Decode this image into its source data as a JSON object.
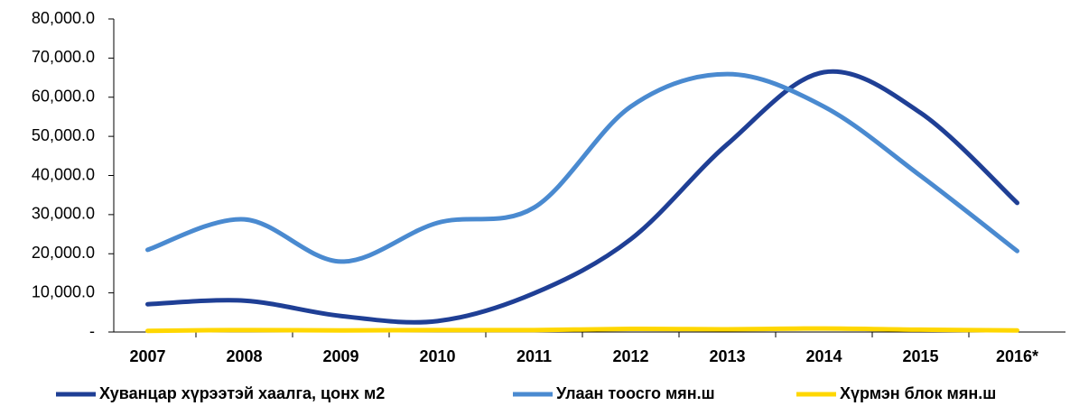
{
  "chart_data": {
    "type": "line",
    "categories": [
      "2007",
      "2008",
      "2009",
      "2010",
      "2011",
      "2012",
      "2013",
      "2014",
      "2015",
      "2016*"
    ],
    "series": [
      {
        "name": "Хуванцар хүрээтэй хаалга, цонх м2",
        "color": "#1f3f95",
        "values": [
          7100,
          8000,
          4100,
          2800,
          9900,
          23700,
          48000,
          66400,
          56000,
          33000
        ]
      },
      {
        "name": "Улаан тоосго мян.ш",
        "color": "#4a8ad0",
        "values": [
          21000,
          28800,
          18000,
          27900,
          31800,
          57600,
          65900,
          57600,
          39900,
          20700
        ]
      },
      {
        "name": "Хүрмэн блок мян.ш",
        "color": "#ffd700",
        "values": [
          300,
          500,
          400,
          500,
          500,
          800,
          700,
          900,
          600,
          400
        ]
      }
    ],
    "ylim": [
      0,
      80000
    ],
    "yticks": [
      {
        "value": 0,
        "label": "-"
      },
      {
        "value": 10000,
        "label": "10,000.0"
      },
      {
        "value": 20000,
        "label": "20,000.0"
      },
      {
        "value": 30000,
        "label": "30,000.0"
      },
      {
        "value": 40000,
        "label": "40,000.0"
      },
      {
        "value": 50000,
        "label": "50,000.0"
      },
      {
        "value": 60000,
        "label": "60,000.0"
      },
      {
        "value": 70000,
        "label": "70,000.0"
      },
      {
        "value": 80000,
        "label": "80,000.0"
      }
    ],
    "smooth": true,
    "legend": "bottom"
  }
}
